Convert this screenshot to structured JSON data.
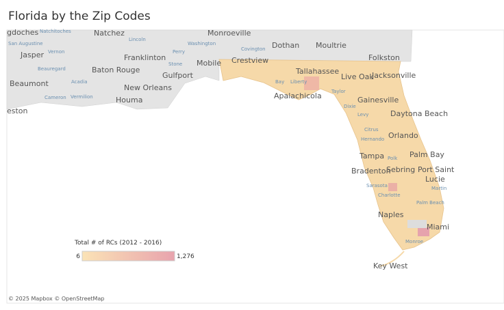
{
  "header": {
    "title": "Florida by the Zip Codes"
  },
  "map": {
    "labels": [
      "Natchez",
      "Monroeville",
      "Dothan",
      "Moultrie",
      "Folkston",
      "Jasper",
      "Franklinton",
      "Mobile",
      "Crestview",
      "Tallahassee",
      "Live Oak",
      "Jacksonville",
      "Baton Rouge",
      "Gulfport",
      "Beaumont",
      "New Orleans",
      "Houma",
      "Apalachicola",
      "Gainesville",
      "Daytona Beach",
      "Orlando",
      "Tampa",
      "Palm Bay",
      "Sebring",
      "Port Saint",
      "Lucie",
      "Bradenton",
      "Naples",
      "Miami",
      "Key West",
      "eston",
      "gdoches"
    ],
    "small_labels": [
      "Natchitoches",
      "San Augustine",
      "Vernon",
      "Beauregard",
      "Lincoln",
      "Perry",
      "Stone",
      "Washington",
      "Covington",
      "Cameron",
      "Vermilion",
      "Acadia",
      "Liberty",
      "Bay",
      "Dixie",
      "Levy",
      "Citrus",
      "Hernando",
      "Polk",
      "Sarasota",
      "Charlotte",
      "Martin",
      "Palm Beach",
      "Monroe",
      "Taylor"
    ]
  },
  "legend": {
    "title": "Total # of RCs (2012 - 2016)",
    "min": 6,
    "max": {
      "value": 1276,
      "label": "1,276"
    },
    "min_color": "#fbe3b6",
    "max_color": "#e8a3ad"
  },
  "footer": {
    "attribution": "© 2025 Mapbox © OpenStreetMap"
  }
}
